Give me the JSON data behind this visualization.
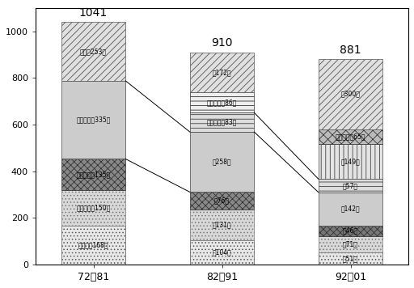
{
  "categories": [
    "72～81",
    "82～91",
    "92～01"
  ],
  "totals": [
    1041,
    910,
    881
  ],
  "bar0": [
    {
      "value": 168,
      "label": "传送带（168）",
      "hatch": "....",
      "fc": "#e8e8e8",
      "ec": "#555555"
    },
    {
      "value": 150,
      "label": "流动液体（150）",
      "hatch": "....",
      "fc": "#d8d8d8",
      "ec": "#777777"
    },
    {
      "value": 135,
      "label": "噴出气体（135）",
      "hatch": "xxxx",
      "fc": "#888888",
      "ec": "#333333"
    },
    {
      "value": 335,
      "label": "摩擦粉体（335）",
      "hatch": "####",
      "fc": "#cccccc",
      "ec": "#444444"
    },
    {
      "value": 253,
      "label": "其它（253）",
      "hatch": "////",
      "fc": "#e0e0e0",
      "ec": "#555555"
    }
  ],
  "bar1": [
    {
      "value": 104,
      "label": "（104）",
      "hatch": "....",
      "fc": "#e8e8e8",
      "ec": "#555555"
    },
    {
      "value": 131,
      "label": "（131）",
      "hatch": "....",
      "fc": "#d8d8d8",
      "ec": "#777777"
    },
    {
      "value": 76,
      "label": "（76）",
      "hatch": "xxxx",
      "fc": "#888888",
      "ec": "#333333"
    },
    {
      "value": 258,
      "label": "（258）",
      "hatch": "####",
      "fc": "#cccccc",
      "ec": "#444444"
    },
    {
      "value": 83,
      "label": "静电诊断（83）",
      "hatch": "---",
      "fc": "#dddddd",
      "ec": "#444444"
    },
    {
      "value": 86,
      "label": "带电衣服（86）",
      "hatch": "---",
      "fc": "#eeeeee",
      "ec": "#333333"
    },
    {
      "value": 172,
      "label": "（172）",
      "hatch": "////",
      "fc": "#e0e0e0",
      "ec": "#555555"
    }
  ],
  "bar2": [
    {
      "value": 51,
      "label": "（51）",
      "hatch": "....",
      "fc": "#e8e8e8",
      "ec": "#555555"
    },
    {
      "value": 71,
      "label": "（71）",
      "hatch": "....",
      "fc": "#d8d8d8",
      "ec": "#777777"
    },
    {
      "value": 46,
      "label": "（46）",
      "hatch": "xxxx",
      "fc": "#777777",
      "ec": "#333333"
    },
    {
      "value": 142,
      "label": "（142）",
      "hatch": "####",
      "fc": "#cccccc",
      "ec": "#444444"
    },
    {
      "value": 57,
      "label": "（57）",
      "hatch": "---",
      "fc": "#dddddd",
      "ec": "#444444"
    },
    {
      "value": 149,
      "label": "（149）",
      "hatch": "|||",
      "fc": "#e4e4e4",
      "ec": "#444444"
    },
    {
      "value": 65,
      "label": "导管流动（65）",
      "hatch": "xxx",
      "fc": "#bbbbbb",
      "ec": "#333333"
    },
    {
      "value": 300,
      "label": "（300）",
      "hatch": "////",
      "fc": "#e0e0e0",
      "ec": "#555555"
    }
  ],
  "bar_width": 0.5,
  "x_positions": [
    0,
    1,
    2
  ],
  "ylim": [
    0,
    1100
  ],
  "yticks": [
    0,
    200,
    400,
    600,
    800,
    1000
  ],
  "label_fontsize": 5.5,
  "total_fontsize": 10,
  "tick_fontsize": 8,
  "xtick_fontsize": 9,
  "connect_lines_01": [
    [
      453,
      311
    ],
    [
      788,
      569
    ]
  ],
  "connect_lines_12": [
    [
      569,
      310
    ],
    [
      652,
      367
    ]
  ]
}
